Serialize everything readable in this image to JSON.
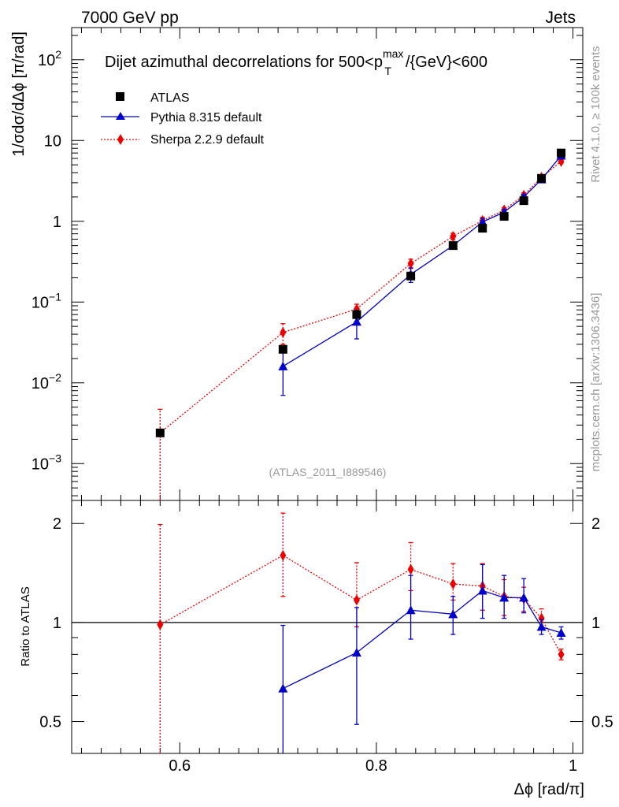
{
  "header": {
    "left": "7000 GeV pp",
    "right": "Jets"
  },
  "side_text": {
    "rivet": "Rivet 4.1.0, ≥ 100k events",
    "mcplots": "mcplots.cern.ch [arXiv:1306.3436]"
  },
  "colors": {
    "atlas": "#000000",
    "pythia": "#0000cc",
    "sherpa": "#ee0000",
    "side": "#999999"
  },
  "chart_data": [
    {
      "type": "scatter",
      "title": "Dijet azimuthal decorrelations for 500<p",
      "title_sup": "max",
      "title_sub": "T",
      "title_tail": "/{GeV}<600",
      "ylabel": "1/σdσ/dΔϕ [π/rad]",
      "yscale": "log",
      "ylim": [
        0.00035,
        250
      ],
      "xlim": [
        0.49,
        1.01
      ],
      "ytick_labels": [
        {
          "value": 0.001,
          "base": "10",
          "exp": "−3"
        },
        {
          "value": 0.01,
          "base": "10",
          "exp": "−2"
        },
        {
          "value": 0.1,
          "base": "10",
          "exp": "−1"
        },
        {
          "value": 1,
          "base": "1",
          "exp": ""
        },
        {
          "value": 10,
          "base": "10",
          "exp": ""
        },
        {
          "value": 100,
          "base": "10",
          "exp": "2"
        }
      ],
      "watermark": "(ATLAS_2011_I889546)",
      "legend": [
        "ATLAS",
        "Pythia 8.315 default",
        "Sherpa 2.2.9 default"
      ],
      "series": [
        {
          "name": "ATLAS",
          "style": "square",
          "x": [
            0.58,
            0.705,
            0.78,
            0.835,
            0.878,
            0.908,
            0.93,
            0.95,
            0.968,
            0.988
          ],
          "y": [
            0.0024,
            0.026,
            0.07,
            0.21,
            0.5,
            0.82,
            1.15,
            1.8,
            3.4,
            7.0
          ],
          "yerr_lo": [
            0.0002,
            0.003,
            0.01,
            0.02,
            0.03,
            0.05,
            0.05,
            0.1,
            0.15,
            0.3
          ],
          "yerr_hi": [
            0.0002,
            0.003,
            0.01,
            0.02,
            0.03,
            0.05,
            0.05,
            0.1,
            0.15,
            0.3
          ]
        },
        {
          "name": "Pythia 8.315 default",
          "style": "triangle",
          "x": [
            0.705,
            0.78,
            0.835,
            0.878,
            0.908,
            0.93,
            0.95,
            0.968,
            0.988
          ],
          "y": [
            0.016,
            0.057,
            0.22,
            0.5,
            0.98,
            1.3,
            2.0,
            3.3,
            6.5
          ],
          "yerr_lo": [
            0.009,
            0.022,
            0.045,
            0.05,
            0.1,
            0.1,
            0.15,
            0.15,
            0.3
          ],
          "yerr_hi": [
            0.009,
            0.022,
            0.045,
            0.05,
            0.1,
            0.1,
            0.15,
            0.15,
            0.3
          ]
        },
        {
          "name": "Sherpa 2.2.9 default",
          "style": "diamond",
          "x": [
            0.58,
            0.705,
            0.78,
            0.835,
            0.878,
            0.908,
            0.93,
            0.95,
            0.968,
            0.988
          ],
          "y": [
            0.0024,
            0.042,
            0.082,
            0.3,
            0.65,
            1.02,
            1.38,
            2.1,
            3.5,
            5.5
          ],
          "yerr_lo": [
            0.0023,
            0.012,
            0.012,
            0.04,
            0.06,
            0.1,
            0.1,
            0.15,
            0.2,
            0.3
          ],
          "yerr_hi": [
            0.0023,
            0.012,
            0.012,
            0.04,
            0.06,
            0.1,
            0.1,
            0.15,
            0.2,
            0.3
          ]
        }
      ]
    },
    {
      "type": "scatter",
      "ylabel": "Ratio to ATLAS",
      "xlabel": "Δϕ [rad/π]",
      "yscale": "log",
      "ylim": [
        0.4,
        2.35
      ],
      "xlim": [
        0.49,
        1.01
      ],
      "reference_line": 1,
      "ytick_labels": [
        "0.5",
        "1",
        "2"
      ],
      "ytick_values": [
        0.5,
        1,
        2
      ],
      "xtick_labels": [
        "0.6",
        "0.8",
        "1"
      ],
      "xtick_values": [
        0.6,
        0.8,
        1.0
      ],
      "series": [
        {
          "name": "Pythia 8.315 default",
          "style": "triangle",
          "x": [
            0.705,
            0.78,
            0.835,
            0.878,
            0.908,
            0.93,
            0.95,
            0.968,
            0.988
          ],
          "y": [
            0.63,
            0.81,
            1.09,
            1.06,
            1.25,
            1.19,
            1.19,
            0.97,
            0.93
          ],
          "yerr_lo": [
            0.3,
            0.32,
            0.2,
            0.14,
            0.22,
            0.16,
            0.12,
            0.05,
            0.04
          ],
          "yerr_hi": [
            0.35,
            0.3,
            0.3,
            0.14,
            0.25,
            0.2,
            0.17,
            0.05,
            0.04
          ]
        },
        {
          "name": "Sherpa 2.2.9 default",
          "style": "diamond",
          "x": [
            0.58,
            0.705,
            0.78,
            0.835,
            0.878,
            0.908,
            0.93,
            0.95,
            0.968,
            0.988
          ],
          "y": [
            0.985,
            1.6,
            1.17,
            1.45,
            1.31,
            1.29,
            1.2,
            1.18,
            1.03,
            0.8
          ],
          "yerr_lo": [
            0.6,
            0.4,
            0.2,
            0.2,
            0.14,
            0.2,
            0.15,
            0.1,
            0.07,
            0.03
          ],
          "yerr_hi": [
            1.0,
            0.55,
            0.35,
            0.3,
            0.2,
            0.22,
            0.15,
            0.1,
            0.07,
            0.03
          ]
        }
      ]
    }
  ]
}
